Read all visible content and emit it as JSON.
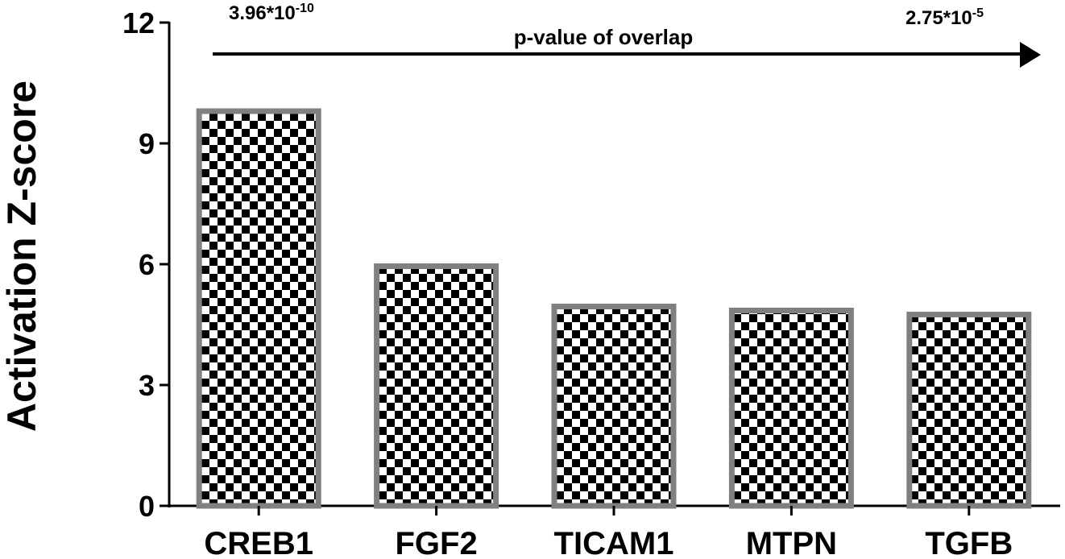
{
  "chart_data": {
    "type": "bar",
    "categories": [
      "CREB1",
      "FGF2",
      "TICAM1",
      "MTPN",
      "TGFB"
    ],
    "values": [
      9.8,
      5.95,
      4.95,
      4.85,
      4.75
    ],
    "ylabel": "Activation Z-score",
    "ylim": [
      0,
      12
    ],
    "yticks": [
      "0",
      "3",
      "6",
      "9",
      "12"
    ],
    "grid": false,
    "bar_fill": "checkerboard",
    "bar_border_color": "#808080",
    "annotations": {
      "arrow_label": "p-value of overlap",
      "left_pvalue": {
        "mantissa": "3.96*10",
        "exponent": "-10"
      },
      "right_pvalue": {
        "mantissa": "2.75*10",
        "exponent": "-5"
      }
    }
  }
}
